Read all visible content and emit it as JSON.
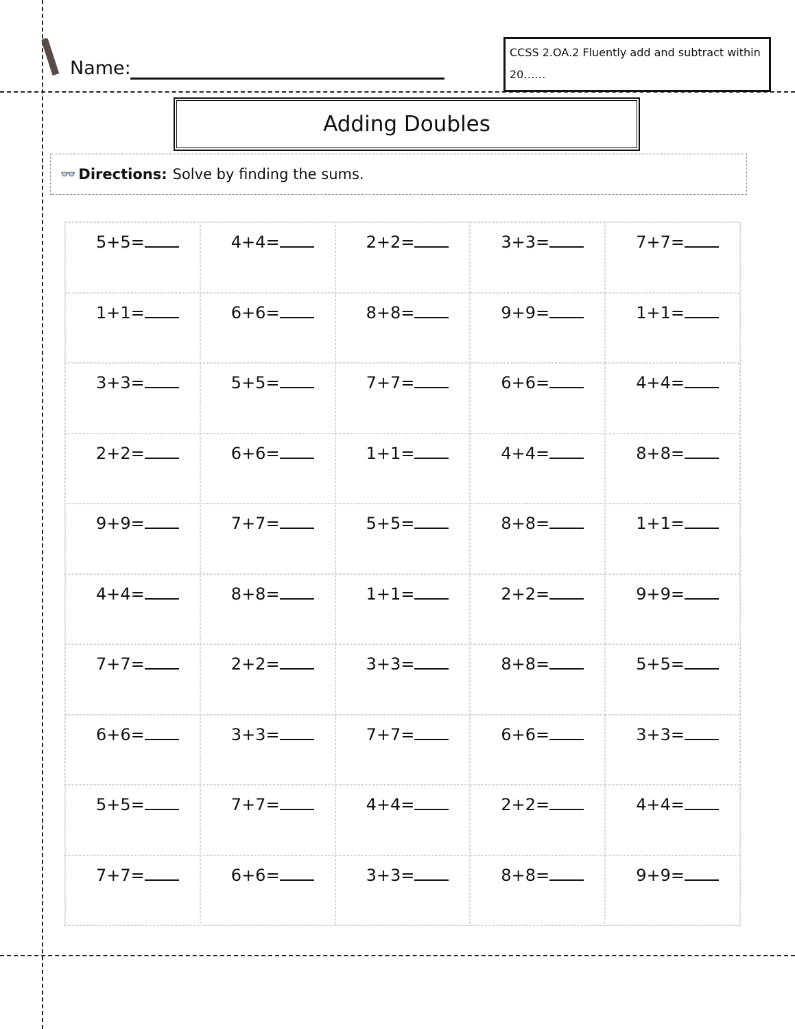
{
  "header": {
    "name_label": "Name:",
    "standard": "CCSS  2.OA.2  Fluently add and subtract within 20……"
  },
  "title": "Adding Doubles",
  "directions": {
    "icon": "glasses-icon",
    "label": "Directions:",
    "text": "Solve by finding the sums."
  },
  "problems": [
    [
      "5+5=",
      "4+4=",
      "2+2=",
      "3+3=",
      "7+7="
    ],
    [
      "1+1=",
      "6+6=",
      "8+8=",
      "9+9=",
      "1+1="
    ],
    [
      "3+3=",
      "5+5=",
      "7+7=",
      "6+6=",
      "4+4="
    ],
    [
      "2+2=",
      "6+6=",
      "1+1=",
      "4+4=",
      "8+8="
    ],
    [
      "9+9=",
      "7+7=",
      "5+5=",
      "8+8=",
      "1+1="
    ],
    [
      "4+4=",
      "8+8=",
      "1+1=",
      "2+2=",
      "9+9="
    ],
    [
      "7+7=",
      "2+2=",
      "3+3=",
      "8+8=",
      "5+5="
    ],
    [
      "6+6=",
      "3+3=",
      "7+7=",
      "6+6=",
      "3+3="
    ],
    [
      "5+5=",
      "7+7=",
      "4+4=",
      "2+2=",
      "4+4="
    ],
    [
      "7+7=",
      "6+6=",
      "3+3=",
      "8+8=",
      "9+9="
    ]
  ]
}
